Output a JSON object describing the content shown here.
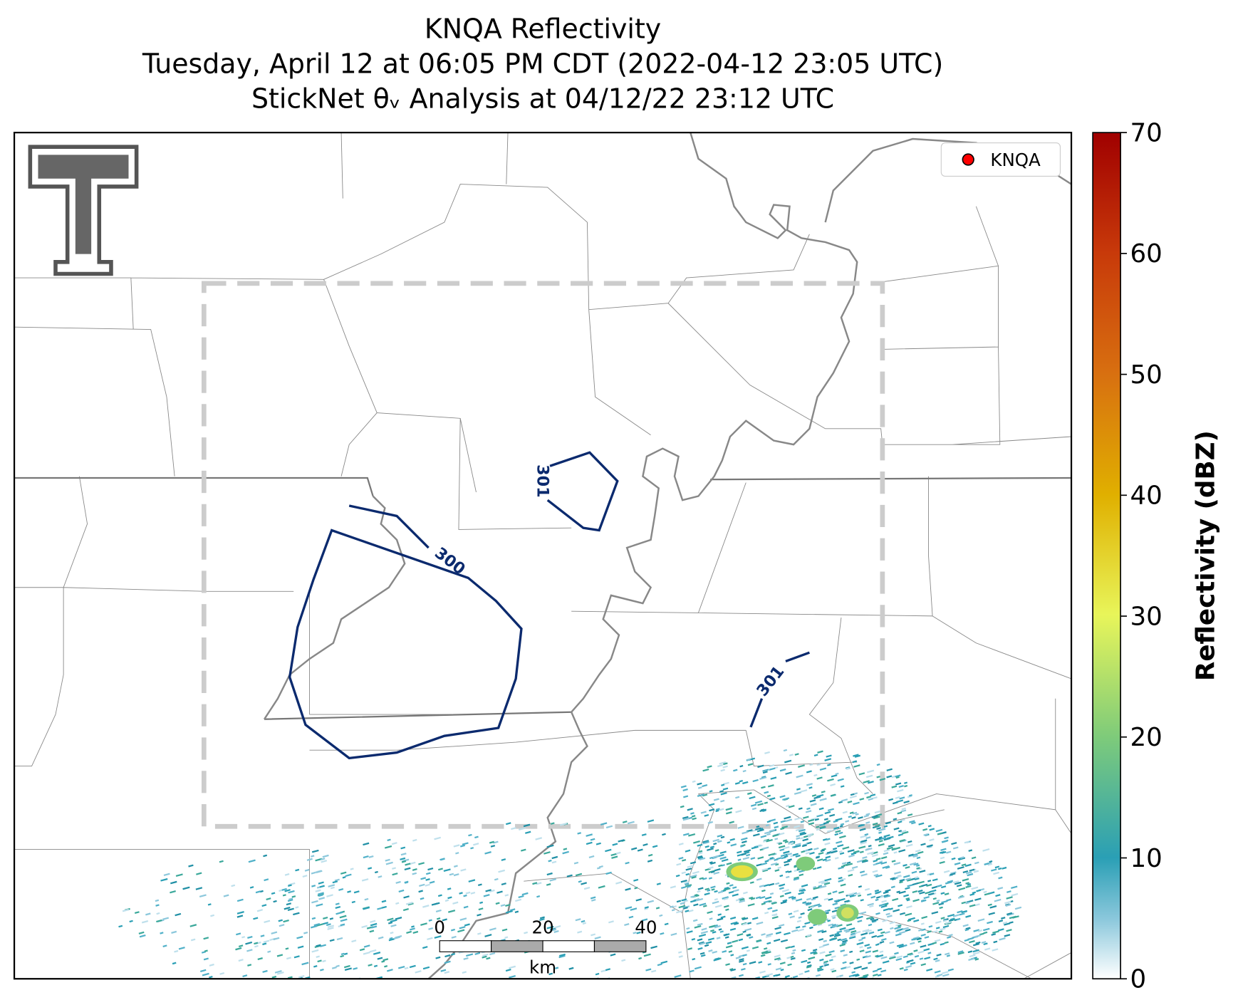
{
  "title": [
    "KNQA Reflectivity",
    "Tuesday, April 12 at 06:05 PM CDT (2022-04-12 23:05 UTC)",
    "StickNet θᵥ Analysis at 04/12/22 23:12 UTC"
  ],
  "legend": {
    "label": "KNQA",
    "color": "#ff0000"
  },
  "contour_labels": [
    "300",
    "301",
    "301"
  ],
  "scale_bar": {
    "ticks": [
      0,
      20,
      40
    ],
    "unit": "km"
  },
  "colorbar": {
    "label": "Reflectivity (dBZ)",
    "lim": [
      0,
      70
    ],
    "ticks": [
      0,
      10,
      20,
      30,
      40,
      50,
      60,
      70
    ]
  }
}
